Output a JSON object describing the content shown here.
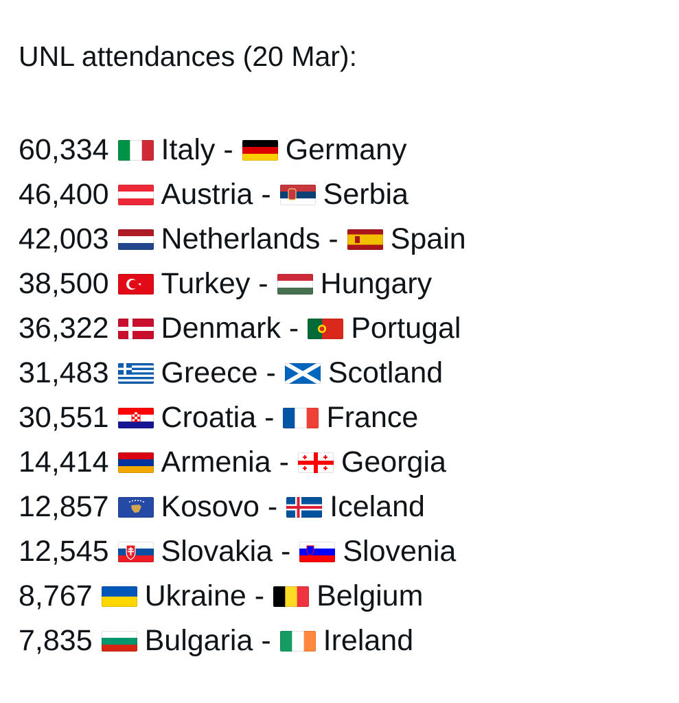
{
  "title": "UNL attendances (20 Mar):",
  "matches": [
    {
      "attendance": "60,334",
      "home": {
        "name": "Italy",
        "flag": "italy-flag-icon"
      },
      "away": {
        "name": "Germany",
        "flag": "germany-flag-icon"
      }
    },
    {
      "attendance": "46,400",
      "home": {
        "name": "Austria",
        "flag": "austria-flag-icon"
      },
      "away": {
        "name": "Serbia",
        "flag": "serbia-flag-icon"
      }
    },
    {
      "attendance": "42,003",
      "home": {
        "name": "Netherlands",
        "flag": "netherlands-flag-icon"
      },
      "away": {
        "name": "Spain",
        "flag": "spain-flag-icon"
      }
    },
    {
      "attendance": "38,500",
      "home": {
        "name": "Turkey",
        "flag": "turkey-flag-icon"
      },
      "away": {
        "name": "Hungary",
        "flag": "hungary-flag-icon"
      }
    },
    {
      "attendance": "36,322",
      "home": {
        "name": "Denmark",
        "flag": "denmark-flag-icon"
      },
      "away": {
        "name": "Portugal",
        "flag": "portugal-flag-icon"
      }
    },
    {
      "attendance": "31,483",
      "home": {
        "name": "Greece",
        "flag": "greece-flag-icon"
      },
      "away": {
        "name": "Scotland",
        "flag": "scotland-flag-icon"
      }
    },
    {
      "attendance": "30,551",
      "home": {
        "name": "Croatia",
        "flag": "croatia-flag-icon"
      },
      "away": {
        "name": "France",
        "flag": "france-flag-icon"
      }
    },
    {
      "attendance": "14,414",
      "home": {
        "name": "Armenia",
        "flag": "armenia-flag-icon"
      },
      "away": {
        "name": "Georgia",
        "flag": "georgia-flag-icon"
      }
    },
    {
      "attendance": "12,857",
      "home": {
        "name": "Kosovo",
        "flag": "kosovo-flag-icon"
      },
      "away": {
        "name": "Iceland",
        "flag": "iceland-flag-icon"
      }
    },
    {
      "attendance": "12,545",
      "home": {
        "name": "Slovakia",
        "flag": "slovakia-flag-icon"
      },
      "away": {
        "name": "Slovenia",
        "flag": "slovenia-flag-icon"
      }
    },
    {
      "attendance": "8,767",
      "home": {
        "name": "Ukraine",
        "flag": "ukraine-flag-icon"
      },
      "away": {
        "name": "Belgium",
        "flag": "belgium-flag-icon"
      }
    },
    {
      "attendance": "7,835",
      "home": {
        "name": "Bulgaria",
        "flag": "bulgaria-flag-icon"
      },
      "away": {
        "name": "Ireland",
        "flag": "ireland-flag-icon"
      }
    }
  ],
  "separator": "-"
}
